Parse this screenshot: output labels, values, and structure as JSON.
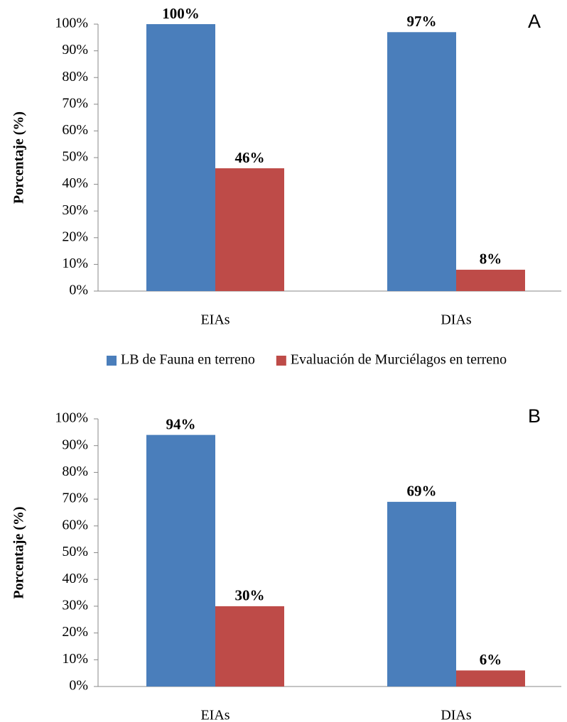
{
  "chart_data": [
    {
      "type": "bar",
      "annotation": "A",
      "ylabel": "Porcentaje (%)",
      "categories": [
        "EIAs",
        "DIAs"
      ],
      "series": [
        {
          "name": "LB de Fauna en terreno",
          "color": "#4a7ebb",
          "values": [
            100,
            97
          ],
          "value_labels": [
            "100%",
            "97%"
          ]
        },
        {
          "name": "Evaluación de Murciélagos  en terreno",
          "color": "#be4b48",
          "values": [
            46,
            8
          ],
          "value_labels": [
            "46%",
            "8%"
          ]
        }
      ],
      "ylim": [
        0,
        100
      ],
      "yticks": [
        {
          "value": 0,
          "label": "0%"
        },
        {
          "value": 10,
          "label": "10%"
        },
        {
          "value": 20,
          "label": "20%"
        },
        {
          "value": 30,
          "label": "30%"
        },
        {
          "value": 40,
          "label": "40%"
        },
        {
          "value": 50,
          "label": "50%"
        },
        {
          "value": 60,
          "label": "60%"
        },
        {
          "value": 70,
          "label": "70%"
        },
        {
          "value": 80,
          "label": "80%"
        },
        {
          "value": 90,
          "label": "90%"
        },
        {
          "value": 100,
          "label": "100%"
        }
      ],
      "legend": "bottom"
    },
    {
      "type": "bar",
      "annotation": "B",
      "ylabel": "Porcentaje (%)",
      "categories": [
        "EIAs",
        "DIAs"
      ],
      "series": [
        {
          "color": "#4a7ebb",
          "values": [
            94,
            69
          ],
          "value_labels": [
            "94%",
            "69%"
          ]
        },
        {
          "color": "#be4b48",
          "values": [
            30,
            6
          ],
          "value_labels": [
            "30%",
            "6%"
          ]
        }
      ],
      "ylim": [
        0,
        100
      ],
      "yticks": [
        {
          "value": 0,
          "label": "0%"
        },
        {
          "value": 10,
          "label": "10%"
        },
        {
          "value": 20,
          "label": "20%"
        },
        {
          "value": 30,
          "label": "30%"
        },
        {
          "value": 40,
          "label": "40%"
        },
        {
          "value": 50,
          "label": "50%"
        },
        {
          "value": 60,
          "label": "60%"
        },
        {
          "value": 70,
          "label": "70%"
        },
        {
          "value": 80,
          "label": "80%"
        },
        {
          "value": 90,
          "label": "90%"
        },
        {
          "value": 100,
          "label": "100%"
        }
      ]
    }
  ]
}
